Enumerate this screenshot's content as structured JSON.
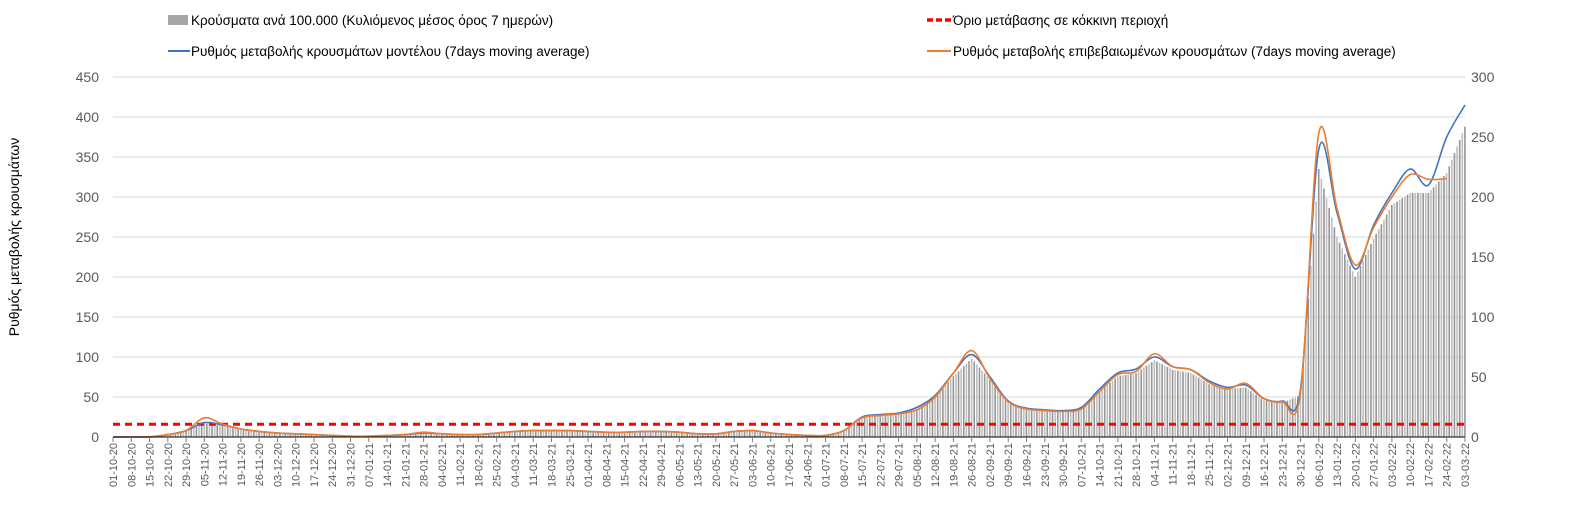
{
  "chart_data": {
    "type": "bar+line",
    "title": "",
    "ylabel": "Ρυθμός μεταβολής κρουσμάτων",
    "ylim": [
      0,
      450
    ],
    "yticks": [
      0,
      50,
      100,
      150,
      200,
      250,
      300,
      350,
      400,
      450
    ],
    "y2lim": [
      0,
      300
    ],
    "y2ticks": [
      0,
      50,
      100,
      150,
      200,
      250,
      300
    ],
    "grid": true,
    "legend_position": "top",
    "colors": {
      "bars": "#a6a6a6",
      "model": "#4472c4",
      "confirmed": "#ed7d31",
      "threshold": "#ff0000",
      "grid": "#d9d9d9"
    },
    "x": [
      "01-10-20",
      "08-10-20",
      "15-10-20",
      "22-10-20",
      "29-10-20",
      "05-11-20",
      "12-11-20",
      "19-11-20",
      "26-11-20",
      "03-12-20",
      "10-12-20",
      "17-12-20",
      "24-12-20",
      "31-12-20",
      "07-01-21",
      "14-01-21",
      "21-01-21",
      "28-01-21",
      "04-02-21",
      "11-02-21",
      "18-02-21",
      "25-02-21",
      "04-03-21",
      "11-03-21",
      "18-03-21",
      "25-03-21",
      "01-04-21",
      "08-04-21",
      "15-04-21",
      "22-04-21",
      "29-04-21",
      "06-05-21",
      "13-05-21",
      "20-05-21",
      "27-05-21",
      "03-06-21",
      "10-06-21",
      "17-06-21",
      "24-06-21",
      "01-07-21",
      "08-07-21",
      "15-07-21",
      "22-07-21",
      "29-07-21",
      "05-08-21",
      "12-08-21",
      "19-08-21",
      "26-08-21",
      "02-09-21",
      "09-09-21",
      "16-09-21",
      "23-09-21",
      "30-09-21",
      "07-10-21",
      "14-10-21",
      "21-10-21",
      "28-10-21",
      "04-11-21",
      "11-11-21",
      "18-11-21",
      "25-11-21",
      "02-12-21",
      "09-12-21",
      "16-12-21",
      "23-12-21",
      "30-12-21",
      "06-01-22",
      "13-01-22",
      "20-01-22",
      "27-01-22",
      "03-02-22",
      "10-02-22",
      "17-02-22",
      "24-02-22",
      "03-03-22"
    ],
    "series": [
      {
        "name": "Κρούσματα ανά 100.000 (Κυλιόμενος μέσος όρος 7 ημερών)",
        "kind": "bar",
        "values": [
          0,
          0,
          0,
          3,
          8,
          17,
          14,
          9,
          7,
          5,
          4,
          3,
          2,
          1,
          1,
          2,
          3,
          5,
          4,
          3,
          3,
          5,
          7,
          8,
          8,
          8,
          7,
          6,
          6,
          7,
          7,
          6,
          4,
          4,
          7,
          8,
          5,
          3,
          2,
          2,
          7,
          24,
          27,
          29,
          35,
          50,
          76,
          98,
          72,
          44,
          35,
          33,
          32,
          35,
          57,
          76,
          80,
          96,
          84,
          80,
          66,
          60,
          62,
          46,
          43,
          52,
          335,
          250,
          200,
          248,
          290,
          305,
          305,
          330,
          388
        ]
      },
      {
        "name": "Ρυθμός μεταβολής κρουσμάτων μοντέλου (7days moving average)",
        "kind": "line",
        "values": [
          0,
          0,
          0,
          3,
          8,
          18,
          15,
          10,
          7,
          5,
          4,
          3,
          2,
          1,
          1,
          2,
          3,
          5,
          4,
          3,
          3,
          5,
          7,
          8,
          8,
          8,
          7,
          6,
          6,
          7,
          7,
          6,
          4,
          4,
          7,
          8,
          5,
          3,
          2,
          2,
          8,
          25,
          28,
          30,
          37,
          52,
          80,
          103,
          75,
          45,
          36,
          34,
          33,
          37,
          60,
          80,
          85,
          100,
          88,
          84,
          70,
          62,
          65,
          48,
          45,
          60,
          360,
          280,
          210,
          265,
          305,
          335,
          315,
          375,
          415
        ]
      },
      {
        "name": "Ρυθμός μεταβολής επιβεβαιωμένων κρουσμάτων (7days moving average)",
        "kind": "line",
        "values": [
          0,
          0,
          0,
          3,
          8,
          24,
          16,
          10,
          7,
          5,
          4,
          3,
          2,
          1,
          1,
          2,
          3,
          6,
          4,
          3,
          3,
          5,
          7,
          8,
          8,
          8,
          7,
          6,
          6,
          7,
          7,
          6,
          4,
          4,
          7,
          8,
          5,
          3,
          2,
          2,
          8,
          24,
          27,
          29,
          34,
          50,
          80,
          108,
          73,
          44,
          35,
          33,
          32,
          35,
          57,
          78,
          82,
          104,
          88,
          84,
          68,
          60,
          67,
          48,
          44,
          56,
          380,
          285,
          215,
          262,
          300,
          328,
          322,
          323,
          null
        ]
      },
      {
        "name": "Όριο μετάβασης σε κόκκινη περιοχή",
        "kind": "threshold",
        "value": 16
      }
    ]
  }
}
